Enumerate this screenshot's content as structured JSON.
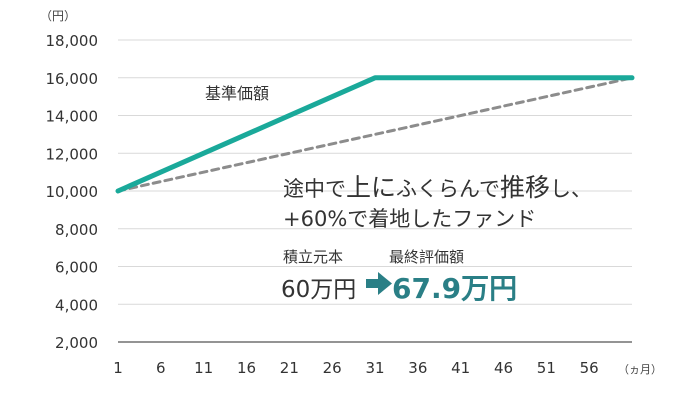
{
  "chart_data": {
    "type": "line",
    "unit_y": "（円）",
    "unit_x": "（ヵ月）",
    "x_ticks": [
      "1",
      "6",
      "11",
      "16",
      "21",
      "26",
      "31",
      "36",
      "41",
      "46",
      "51",
      "56"
    ],
    "y_ticks": [
      "2,000",
      "4,000",
      "6,000",
      "8,000",
      "10,000",
      "12,000",
      "14,000",
      "16,000",
      "18,000"
    ],
    "xlim": [
      1,
      61
    ],
    "ylim": [
      2000,
      18000
    ],
    "grid": "horizontal",
    "series": [
      {
        "name": "基準価額",
        "color": "#1aa99a",
        "style": "solid",
        "points": [
          [
            1,
            10000
          ],
          [
            31,
            16000
          ],
          [
            61,
            16000
          ]
        ]
      },
      {
        "name": "",
        "color": "#8c8c8c",
        "style": "dashed",
        "points": [
          [
            1,
            10000
          ],
          [
            61,
            16000
          ]
        ]
      }
    ],
    "annotation": {
      "line1_a": "途中で",
      "line1_b": "上に",
      "line1_c": "ふくらんで",
      "line1_d": "推移",
      "line1_e": "し、",
      "line2": "+60%で着地したファンド",
      "principal_label": "積立元本",
      "final_label": "最終評価額",
      "principal_value": "60万円",
      "final_value": "67.9万円",
      "arrow_color": "#2a7f86"
    }
  }
}
